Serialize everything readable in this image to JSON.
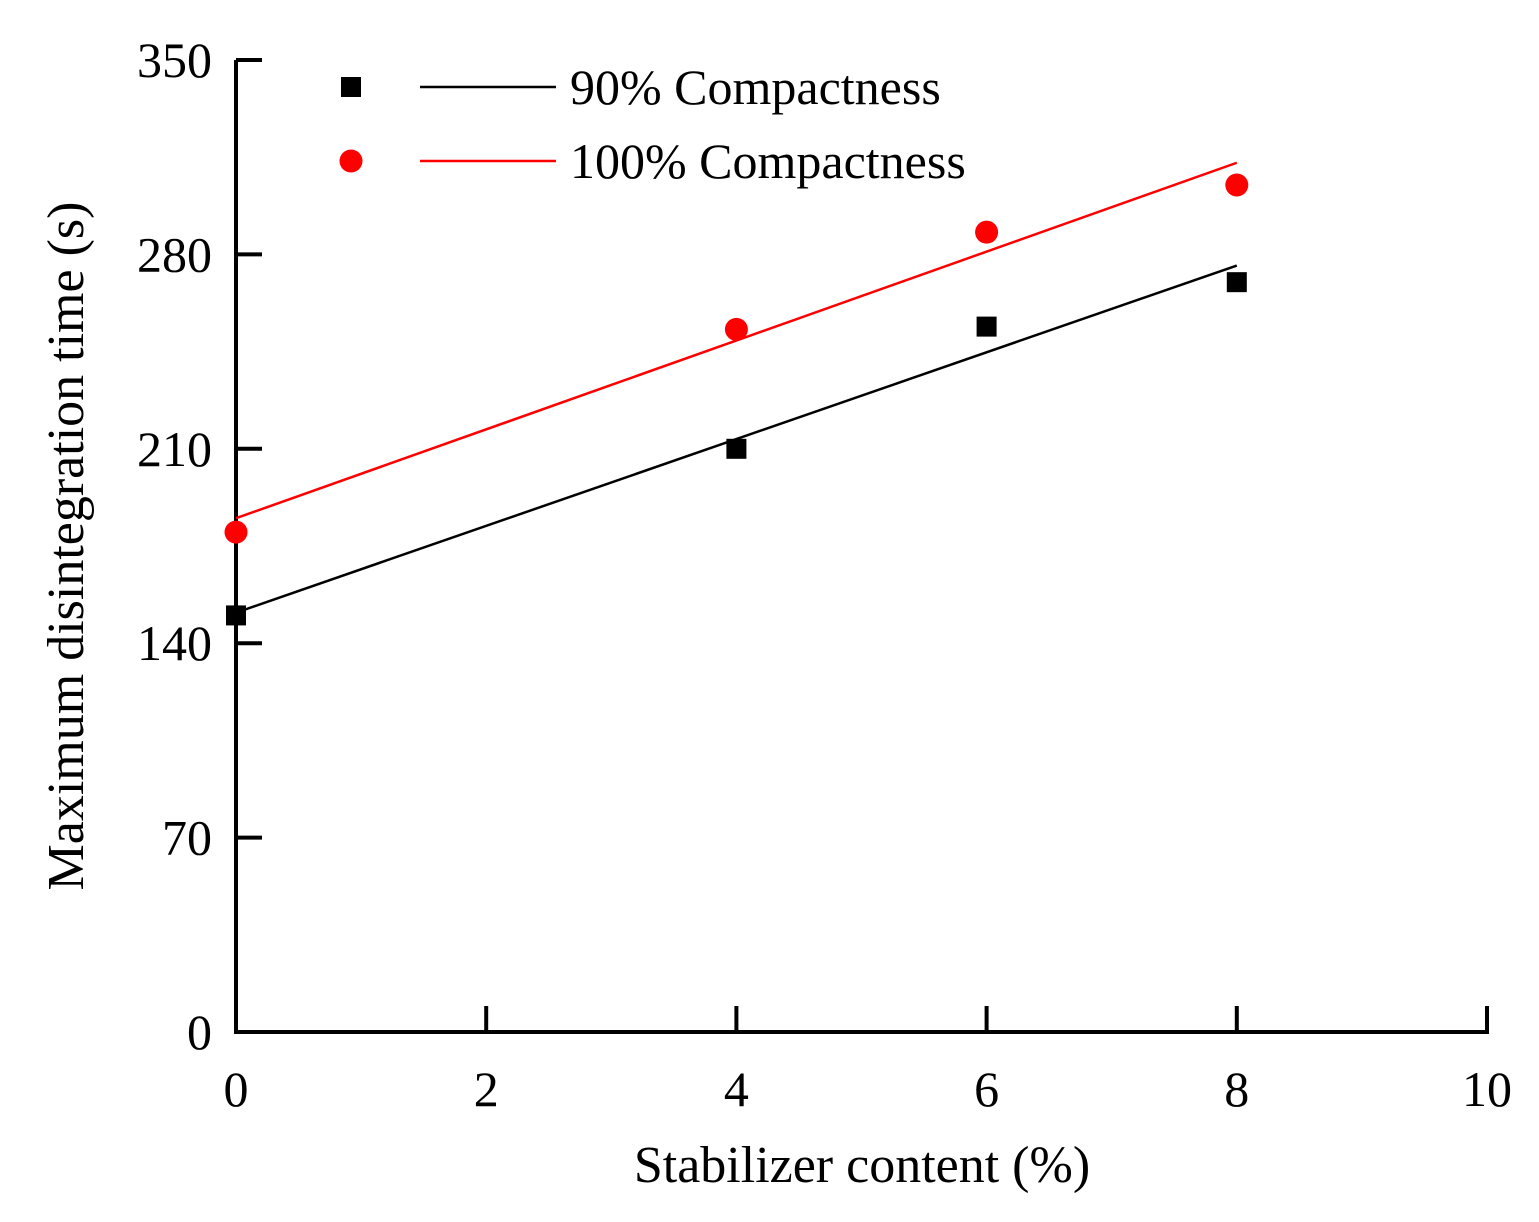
{
  "chart_data": {
    "type": "scatter",
    "title": "",
    "xlabel": "Stabilizer content (%)",
    "ylabel": "Maximum disintegration time (s)",
    "xlim": [
      0,
      10
    ],
    "ylim": [
      0,
      350
    ],
    "xticks": [
      0,
      2,
      4,
      6,
      8,
      10
    ],
    "yticks": [
      0,
      70,
      140,
      210,
      280,
      350
    ],
    "grid": false,
    "legend_position": "top-left",
    "series": [
      {
        "name": "90% Compactness",
        "marker": "square",
        "color": "#000000",
        "x": [
          0,
          4,
          6,
          8
        ],
        "y": [
          150,
          210,
          254,
          270
        ],
        "fit": {
          "x": [
            0,
            8
          ],
          "y": [
            151,
            276
          ]
        }
      },
      {
        "name": "100% Compactness",
        "marker": "circle",
        "color": "#ff0000",
        "x": [
          0,
          4,
          6,
          8
        ],
        "y": [
          180,
          253,
          288,
          305
        ],
        "fit": {
          "x": [
            0,
            8
          ],
          "y": [
            185,
            313
          ]
        }
      }
    ]
  }
}
